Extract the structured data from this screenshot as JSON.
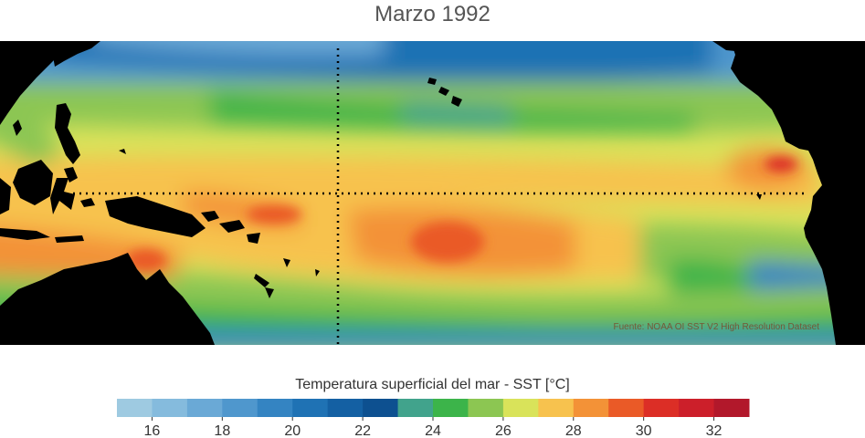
{
  "title": "Marzo 1992",
  "source_note": "Fuente: NOAA OI SST V2 High Resolution Dataset",
  "colorbar": {
    "label": "Temperatura superficial del mar - SST  [°C]",
    "min": 15,
    "max": 33,
    "step": 1,
    "tick_values": [
      "16",
      "18",
      "20",
      "22",
      "24",
      "26",
      "28",
      "30",
      "32"
    ],
    "colors": [
      "#9ecae1",
      "#85bbdd",
      "#6aa9d6",
      "#4f97cd",
      "#3484c2",
      "#1f72b4",
      "#1460a3",
      "#0d5090",
      "#41a38c",
      "#3cb44a",
      "#8cc652",
      "#d9e35a",
      "#f7c24e",
      "#f39237",
      "#ea5a27",
      "#dc2e26",
      "#cc1f2a",
      "#b2182b"
    ]
  },
  "map_colors": {
    "land": "#000000",
    "reference_lines": "#000000"
  }
}
